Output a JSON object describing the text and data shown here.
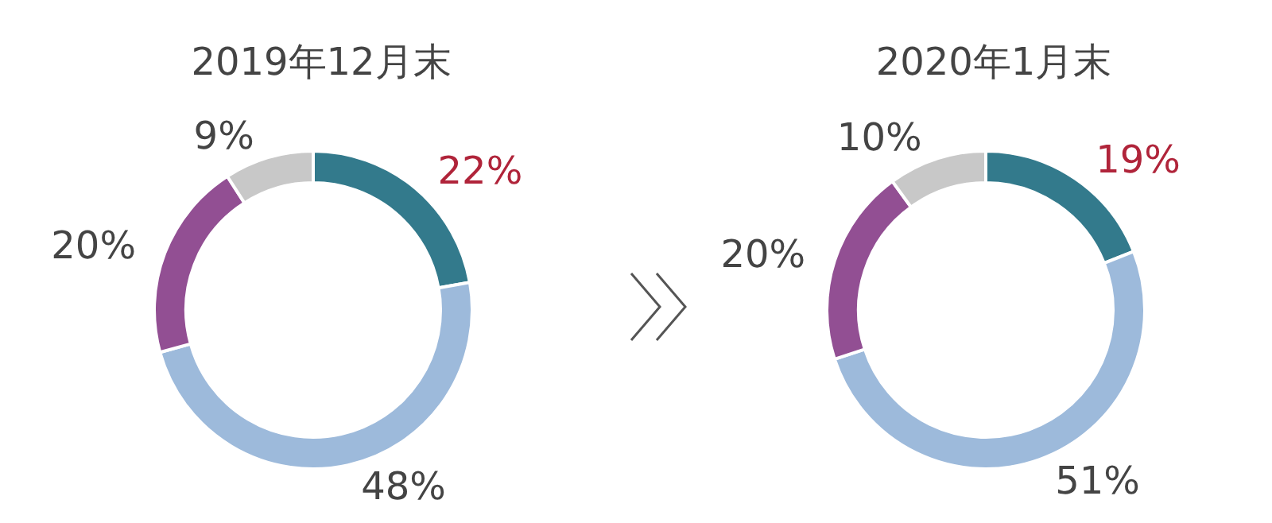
{
  "chart_data": [
    {
      "type": "donut",
      "title": "2019年12月末",
      "categories": [
        null,
        null,
        null,
        null
      ],
      "values": [
        22,
        48,
        20,
        9
      ],
      "value_labels": [
        "22%",
        "48%",
        "20%",
        "9%"
      ],
      "colors": [
        "#337a8c",
        "#9dbadb",
        "#924f93",
        "#c8c8c8"
      ]
    },
    {
      "type": "donut",
      "title": "2020年1月末",
      "categories": [
        null,
        null,
        null,
        null
      ],
      "values": [
        19,
        51,
        20,
        10
      ],
      "value_labels": [
        "19%",
        "51%",
        "20%",
        "10%"
      ],
      "colors": [
        "#337a8c",
        "#9dbadb",
        "#924f93",
        "#c8c8c8"
      ]
    }
  ]
}
